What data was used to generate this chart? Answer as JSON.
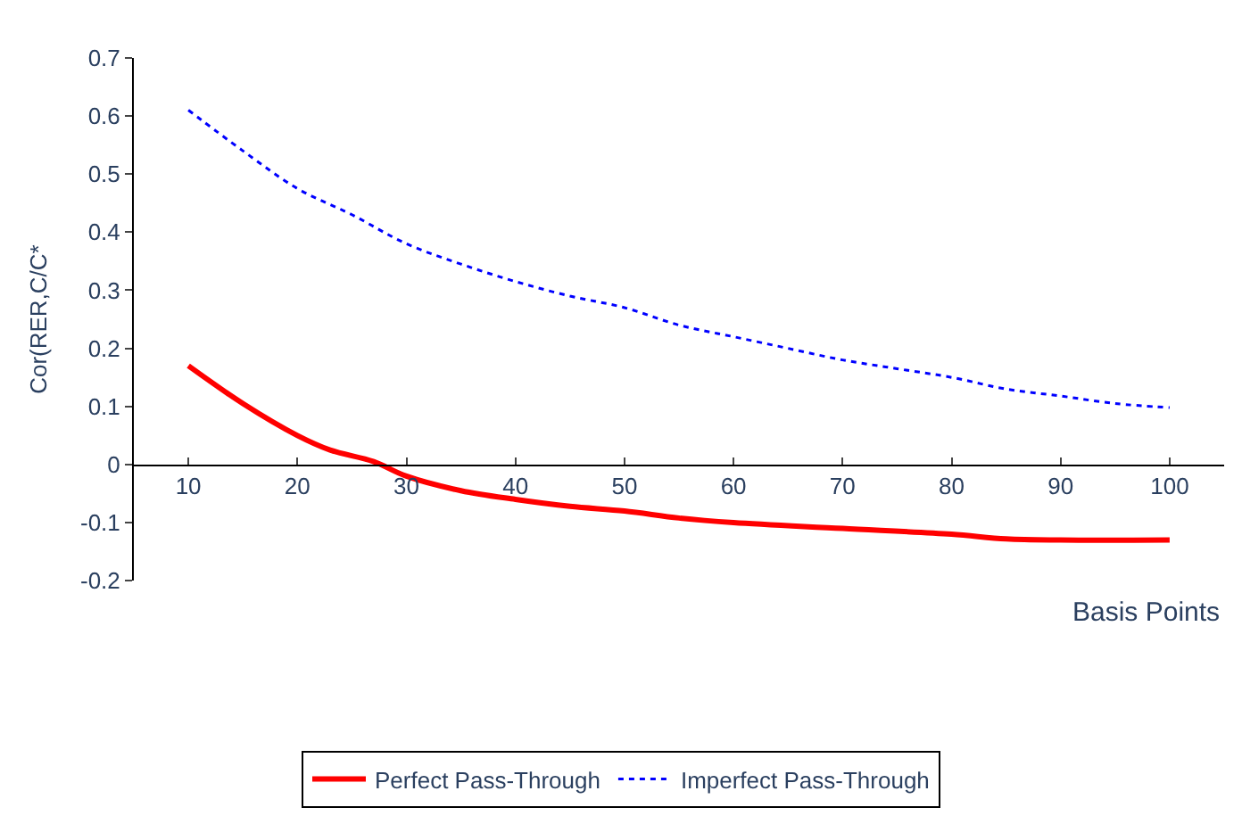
{
  "chart_data": {
    "type": "line",
    "xlabel": "Basis Points",
    "ylabel": "Cor(RER,C/C*",
    "xlim": [
      5,
      105
    ],
    "xticks": [
      10,
      20,
      30,
      40,
      50,
      60,
      70,
      80,
      90,
      100
    ],
    "ylim": [
      -0.2,
      0.7
    ],
    "yticks": [
      -0.2,
      -0.1,
      0,
      0.1,
      0.2,
      0.3,
      0.4,
      0.5,
      0.6,
      0.7
    ],
    "legend": "bottom",
    "marker": "none",
    "series": [
      {
        "name": "Perfect Pass-Through",
        "color": "#ff0000",
        "line_style": "solid",
        "x": [
          10,
          15,
          20,
          23,
          27,
          30,
          35,
          40,
          45,
          50,
          55,
          60,
          70,
          80,
          85,
          90,
          100
        ],
        "values": [
          0.17,
          0.105,
          0.05,
          0.025,
          0.005,
          -0.02,
          -0.045,
          -0.06,
          -0.072,
          -0.08,
          -0.092,
          -0.1,
          -0.11,
          -0.12,
          -0.128,
          -0.13,
          -0.13
        ]
      },
      {
        "name": "Imperfect Pass-Through",
        "color": "#0000ff",
        "line_style": "dotted",
        "x": [
          10,
          15,
          20,
          25,
          30,
          35,
          40,
          45,
          50,
          55,
          60,
          65,
          70,
          75,
          80,
          85,
          90,
          95,
          100
        ],
        "values": [
          0.61,
          0.54,
          0.475,
          0.43,
          0.38,
          0.345,
          0.315,
          0.29,
          0.27,
          0.24,
          0.22,
          0.2,
          0.18,
          0.165,
          0.15,
          0.13,
          0.118,
          0.105,
          0.098
        ]
      }
    ]
  }
}
